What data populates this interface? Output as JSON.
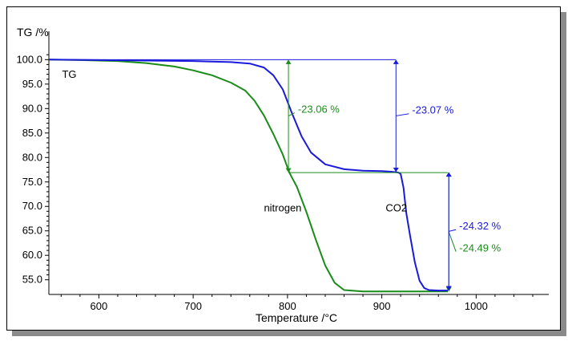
{
  "chart_data": {
    "type": "line",
    "ylabel": "TG /%",
    "xlabel": "Temperature /°C",
    "xlim": [
      547,
      1077
    ],
    "ylim": [
      52,
      101.2
    ],
    "x_ticks": [
      600,
      700,
      800,
      900,
      1000
    ],
    "x_tick_labels": [
      "600",
      "700",
      "800",
      "900",
      "1000"
    ],
    "y_ticks": [
      55,
      60,
      65,
      70,
      75,
      80,
      85,
      90,
      95,
      100
    ],
    "y_tick_labels": [
      "55.0",
      "60.0",
      "65.0",
      "70.0",
      "75.0",
      "80.0",
      "85.0",
      "90.0",
      "95.0",
      "100.0"
    ],
    "grid": false,
    "colors": {
      "nitrogen": "#1a8c1a",
      "co2": "#1a1adc"
    },
    "series": [
      {
        "name": "nitrogen",
        "color": "#1a8c1a",
        "x": [
          547,
          580,
          620,
          650,
          680,
          700,
          720,
          740,
          755,
          765,
          775,
          785,
          795,
          802,
          810,
          820,
          830,
          840,
          850,
          860,
          880,
          920,
          970
        ],
        "y": [
          100.0,
          99.9,
          99.7,
          99.3,
          98.6,
          97.8,
          96.8,
          95.3,
          93.7,
          91.6,
          88.6,
          84.8,
          80.6,
          76.9,
          74.0,
          68.9,
          63.2,
          57.9,
          54.4,
          52.9,
          52.6,
          52.6,
          52.6
        ]
      },
      {
        "name": "CO2",
        "color": "#1a1adc",
        "x": [
          547,
          600,
          650,
          700,
          740,
          760,
          775,
          785,
          795,
          805,
          815,
          825,
          840,
          860,
          880,
          900,
          910,
          915,
          918,
          920,
          923,
          926,
          930,
          935,
          940,
          945,
          950,
          960,
          970
        ],
        "y": [
          100.0,
          99.9,
          99.8,
          99.7,
          99.5,
          99.2,
          98.4,
          96.8,
          93.9,
          88.9,
          84.3,
          81.0,
          78.6,
          77.6,
          77.3,
          77.2,
          77.1,
          77.0,
          76.9,
          76.6,
          73.8,
          68.6,
          64.0,
          58.6,
          54.8,
          53.3,
          52.9,
          52.8,
          52.8
        ]
      }
    ],
    "annotations": [
      {
        "text": "TG",
        "x": 561,
        "y": 96.9,
        "color": "#000000"
      },
      {
        "text": "nitrogen",
        "x": 775,
        "y": 69.6,
        "color": "#000000"
      },
      {
        "text": "CO2",
        "x": 904,
        "y": 69.6,
        "color": "#000000"
      },
      {
        "text": "-23.06 %",
        "x": 811,
        "y": 89.8,
        "color": "#1a8c1a"
      },
      {
        "text": "-23.07 %",
        "x": 932,
        "y": 89.6,
        "color": "#1a1adc"
      },
      {
        "text": "-24.32 %",
        "x": 982,
        "y": 65.9,
        "color": "#1a1adc"
      },
      {
        "text": "-24.49 %",
        "x": 982,
        "y": 61.4,
        "color": "#1a8c1a"
      }
    ],
    "steps": [
      {
        "series": "nitrogen",
        "x": 801,
        "y_top": 100.0,
        "y_bottom": 76.9,
        "label": "-23.06 %",
        "label_x": 811,
        "label_y": 89.8,
        "color": "#1a8c1a",
        "ref_line_x": [
          801,
          970
        ]
      },
      {
        "series": "CO2",
        "x": 915,
        "y_top": 100.0,
        "y_bottom": 77.0,
        "label": "-23.07 %",
        "label_x": 932,
        "label_y": 89.6,
        "color": "#1a1adc",
        "ref_line_x": [
          547,
          915
        ]
      },
      {
        "series": "nitrogen",
        "x": 971,
        "y_top": 77.0,
        "y_bottom": 52.6,
        "label": "-24.49 %",
        "label_x": 982,
        "label_y": 61.4,
        "color": "#1a8c1a"
      },
      {
        "series": "CO2",
        "x": 971,
        "y_top": 77.0,
        "y_bottom": 52.8,
        "label": "-24.32 %",
        "label_x": 982,
        "label_y": 65.9,
        "color": "#1a1adc"
      }
    ]
  }
}
